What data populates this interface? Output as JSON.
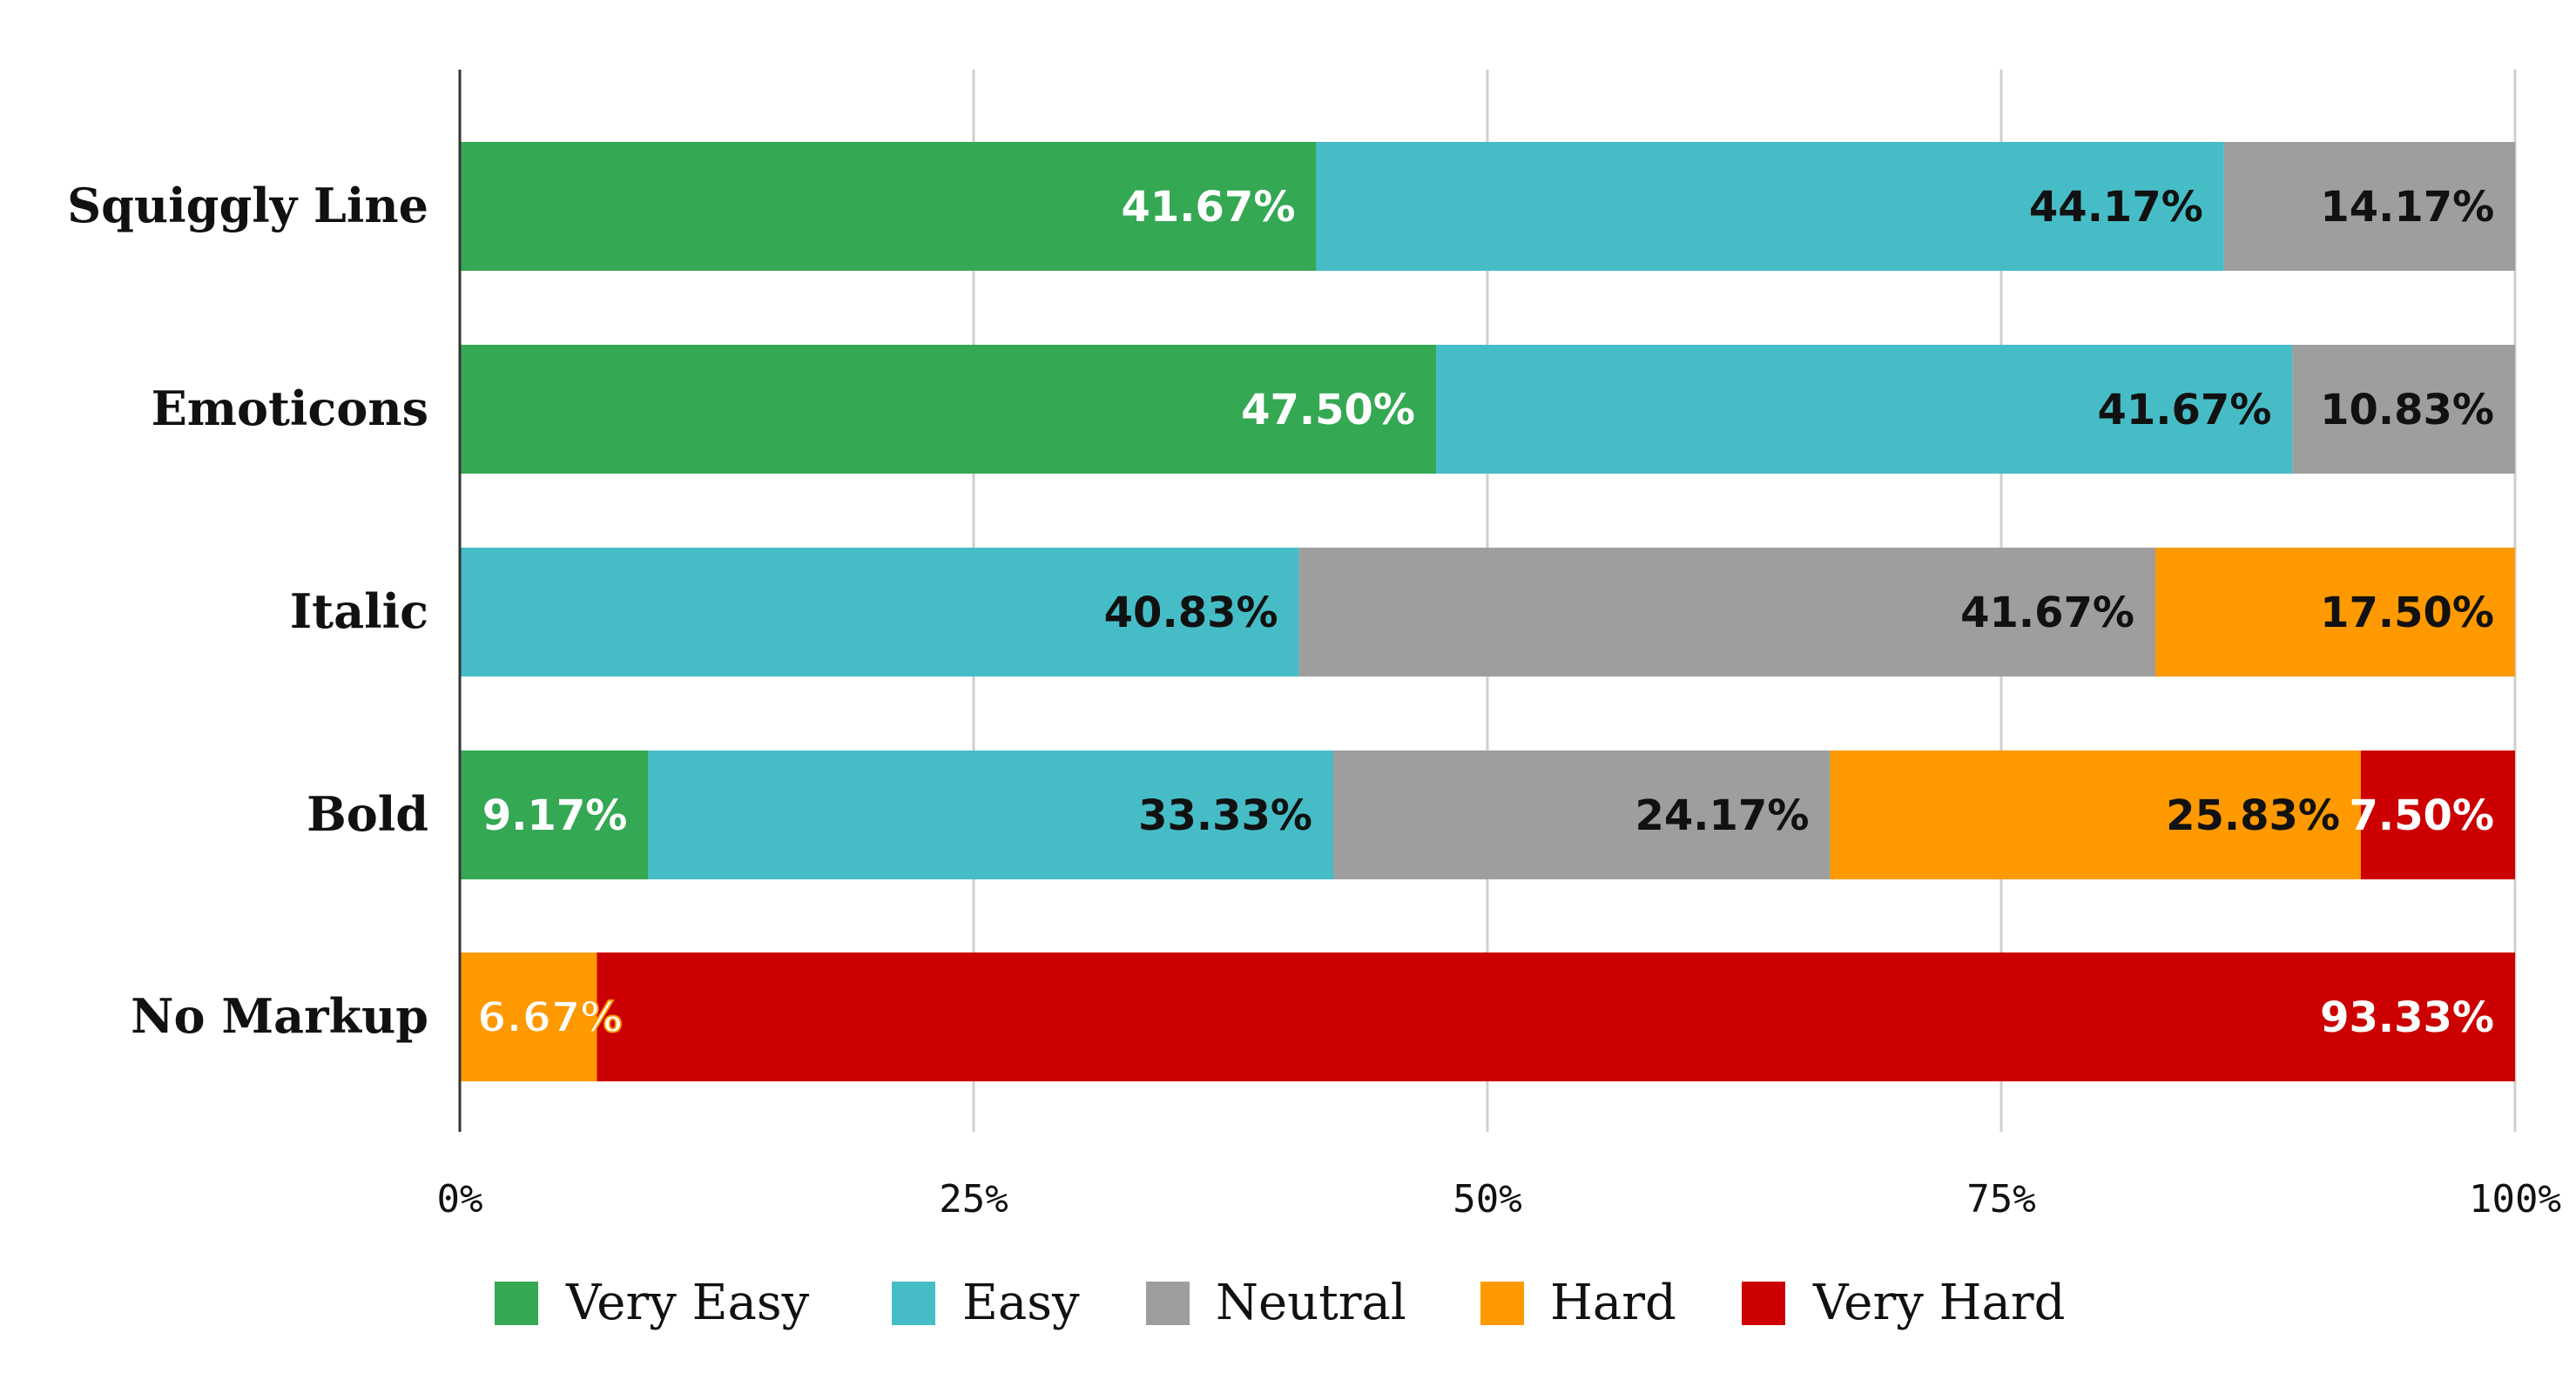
{
  "chart_data": {
    "type": "bar",
    "orientation": "horizontal",
    "stacked": true,
    "percent": true,
    "categories": [
      "Squiggly Line",
      "Emoticons",
      "Italic",
      "Bold",
      "No Markup"
    ],
    "series": [
      {
        "name": "Very Easy",
        "color": "#34a853",
        "values": [
          41.67,
          47.5,
          0,
          9.17,
          0
        ],
        "labels": [
          "41.67%",
          "47.50%",
          "",
          "9.17%",
          ""
        ]
      },
      {
        "name": "Easy",
        "color": "#46bdc6",
        "values": [
          44.17,
          41.67,
          40.83,
          33.33,
          0
        ],
        "labels": [
          "44.17%",
          "41.67%",
          "40.83%",
          "33.33%",
          ""
        ]
      },
      {
        "name": "Neutral",
        "color": "#9e9e9e",
        "values": [
          14.17,
          10.83,
          41.67,
          24.17,
          0
        ],
        "labels": [
          "14.17%",
          "10.83%",
          "41.67%",
          "24.17%",
          ""
        ]
      },
      {
        "name": "Hard",
        "color": "#ff9900",
        "values": [
          0,
          0,
          17.5,
          25.83,
          6.67
        ],
        "labels": [
          "",
          "",
          "17.50%",
          "25.83%",
          "6.67%"
        ]
      },
      {
        "name": "Very Hard",
        "color": "#cc0000",
        "values": [
          0,
          0,
          0,
          7.5,
          93.33
        ],
        "labels": [
          "",
          "",
          "",
          "7.50%",
          "93.33%"
        ]
      }
    ],
    "xlim": [
      0,
      100
    ],
    "xticks": [
      "0%",
      "25%",
      "50%",
      "75%",
      "100%"
    ],
    "grid": true,
    "legend_position": "bottom",
    "title": "",
    "xlabel": "",
    "ylabel": ""
  }
}
